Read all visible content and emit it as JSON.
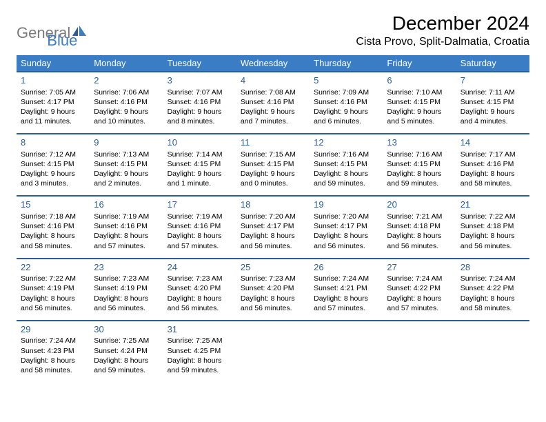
{
  "brand": {
    "word1": "General",
    "word2": "Blue"
  },
  "colors": {
    "header_bg": "#3b7dc4",
    "header_border": "#2b5d97",
    "logo_gray": "#7a7a7a",
    "logo_blue": "#3b7dc4"
  },
  "fonts": {
    "title_pt": 28,
    "location_pt": 16,
    "dayhead_pt": 13,
    "body_pt": 10.5
  },
  "title": "December 2024",
  "location": "Cista Provo, Split-Dalmatia, Croatia",
  "weekdays": [
    "Sunday",
    "Monday",
    "Tuesday",
    "Wednesday",
    "Thursday",
    "Friday",
    "Saturday"
  ],
  "weeks": [
    [
      {
        "day": "1",
        "sunrise": "Sunrise: 7:05 AM",
        "sunset": "Sunset: 4:17 PM",
        "daylight1": "Daylight: 9 hours",
        "daylight2": "and 11 minutes."
      },
      {
        "day": "2",
        "sunrise": "Sunrise: 7:06 AM",
        "sunset": "Sunset: 4:16 PM",
        "daylight1": "Daylight: 9 hours",
        "daylight2": "and 10 minutes."
      },
      {
        "day": "3",
        "sunrise": "Sunrise: 7:07 AM",
        "sunset": "Sunset: 4:16 PM",
        "daylight1": "Daylight: 9 hours",
        "daylight2": "and 8 minutes."
      },
      {
        "day": "4",
        "sunrise": "Sunrise: 7:08 AM",
        "sunset": "Sunset: 4:16 PM",
        "daylight1": "Daylight: 9 hours",
        "daylight2": "and 7 minutes."
      },
      {
        "day": "5",
        "sunrise": "Sunrise: 7:09 AM",
        "sunset": "Sunset: 4:16 PM",
        "daylight1": "Daylight: 9 hours",
        "daylight2": "and 6 minutes."
      },
      {
        "day": "6",
        "sunrise": "Sunrise: 7:10 AM",
        "sunset": "Sunset: 4:15 PM",
        "daylight1": "Daylight: 9 hours",
        "daylight2": "and 5 minutes."
      },
      {
        "day": "7",
        "sunrise": "Sunrise: 7:11 AM",
        "sunset": "Sunset: 4:15 PM",
        "daylight1": "Daylight: 9 hours",
        "daylight2": "and 4 minutes."
      }
    ],
    [
      {
        "day": "8",
        "sunrise": "Sunrise: 7:12 AM",
        "sunset": "Sunset: 4:15 PM",
        "daylight1": "Daylight: 9 hours",
        "daylight2": "and 3 minutes."
      },
      {
        "day": "9",
        "sunrise": "Sunrise: 7:13 AM",
        "sunset": "Sunset: 4:15 PM",
        "daylight1": "Daylight: 9 hours",
        "daylight2": "and 2 minutes."
      },
      {
        "day": "10",
        "sunrise": "Sunrise: 7:14 AM",
        "sunset": "Sunset: 4:15 PM",
        "daylight1": "Daylight: 9 hours",
        "daylight2": "and 1 minute."
      },
      {
        "day": "11",
        "sunrise": "Sunrise: 7:15 AM",
        "sunset": "Sunset: 4:15 PM",
        "daylight1": "Daylight: 9 hours",
        "daylight2": "and 0 minutes."
      },
      {
        "day": "12",
        "sunrise": "Sunrise: 7:16 AM",
        "sunset": "Sunset: 4:15 PM",
        "daylight1": "Daylight: 8 hours",
        "daylight2": "and 59 minutes."
      },
      {
        "day": "13",
        "sunrise": "Sunrise: 7:16 AM",
        "sunset": "Sunset: 4:15 PM",
        "daylight1": "Daylight: 8 hours",
        "daylight2": "and 59 minutes."
      },
      {
        "day": "14",
        "sunrise": "Sunrise: 7:17 AM",
        "sunset": "Sunset: 4:16 PM",
        "daylight1": "Daylight: 8 hours",
        "daylight2": "and 58 minutes."
      }
    ],
    [
      {
        "day": "15",
        "sunrise": "Sunrise: 7:18 AM",
        "sunset": "Sunset: 4:16 PM",
        "daylight1": "Daylight: 8 hours",
        "daylight2": "and 58 minutes."
      },
      {
        "day": "16",
        "sunrise": "Sunrise: 7:19 AM",
        "sunset": "Sunset: 4:16 PM",
        "daylight1": "Daylight: 8 hours",
        "daylight2": "and 57 minutes."
      },
      {
        "day": "17",
        "sunrise": "Sunrise: 7:19 AM",
        "sunset": "Sunset: 4:16 PM",
        "daylight1": "Daylight: 8 hours",
        "daylight2": "and 57 minutes."
      },
      {
        "day": "18",
        "sunrise": "Sunrise: 7:20 AM",
        "sunset": "Sunset: 4:17 PM",
        "daylight1": "Daylight: 8 hours",
        "daylight2": "and 56 minutes."
      },
      {
        "day": "19",
        "sunrise": "Sunrise: 7:20 AM",
        "sunset": "Sunset: 4:17 PM",
        "daylight1": "Daylight: 8 hours",
        "daylight2": "and 56 minutes."
      },
      {
        "day": "20",
        "sunrise": "Sunrise: 7:21 AM",
        "sunset": "Sunset: 4:18 PM",
        "daylight1": "Daylight: 8 hours",
        "daylight2": "and 56 minutes."
      },
      {
        "day": "21",
        "sunrise": "Sunrise: 7:22 AM",
        "sunset": "Sunset: 4:18 PM",
        "daylight1": "Daylight: 8 hours",
        "daylight2": "and 56 minutes."
      }
    ],
    [
      {
        "day": "22",
        "sunrise": "Sunrise: 7:22 AM",
        "sunset": "Sunset: 4:19 PM",
        "daylight1": "Daylight: 8 hours",
        "daylight2": "and 56 minutes."
      },
      {
        "day": "23",
        "sunrise": "Sunrise: 7:23 AM",
        "sunset": "Sunset: 4:19 PM",
        "daylight1": "Daylight: 8 hours",
        "daylight2": "and 56 minutes."
      },
      {
        "day": "24",
        "sunrise": "Sunrise: 7:23 AM",
        "sunset": "Sunset: 4:20 PM",
        "daylight1": "Daylight: 8 hours",
        "daylight2": "and 56 minutes."
      },
      {
        "day": "25",
        "sunrise": "Sunrise: 7:23 AM",
        "sunset": "Sunset: 4:20 PM",
        "daylight1": "Daylight: 8 hours",
        "daylight2": "and 56 minutes."
      },
      {
        "day": "26",
        "sunrise": "Sunrise: 7:24 AM",
        "sunset": "Sunset: 4:21 PM",
        "daylight1": "Daylight: 8 hours",
        "daylight2": "and 57 minutes."
      },
      {
        "day": "27",
        "sunrise": "Sunrise: 7:24 AM",
        "sunset": "Sunset: 4:22 PM",
        "daylight1": "Daylight: 8 hours",
        "daylight2": "and 57 minutes."
      },
      {
        "day": "28",
        "sunrise": "Sunrise: 7:24 AM",
        "sunset": "Sunset: 4:22 PM",
        "daylight1": "Daylight: 8 hours",
        "daylight2": "and 58 minutes."
      }
    ],
    [
      {
        "day": "29",
        "sunrise": "Sunrise: 7:24 AM",
        "sunset": "Sunset: 4:23 PM",
        "daylight1": "Daylight: 8 hours",
        "daylight2": "and 58 minutes."
      },
      {
        "day": "30",
        "sunrise": "Sunrise: 7:25 AM",
        "sunset": "Sunset: 4:24 PM",
        "daylight1": "Daylight: 8 hours",
        "daylight2": "and 59 minutes."
      },
      {
        "day": "31",
        "sunrise": "Sunrise: 7:25 AM",
        "sunset": "Sunset: 4:25 PM",
        "daylight1": "Daylight: 8 hours",
        "daylight2": "and 59 minutes."
      },
      null,
      null,
      null,
      null
    ]
  ]
}
